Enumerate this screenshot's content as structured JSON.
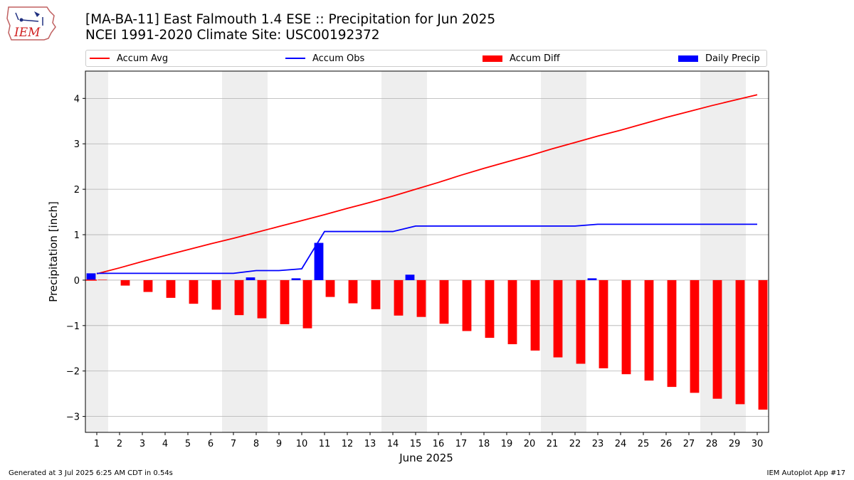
{
  "header": {
    "title_line1": "[MA-BA-11] East Falmouth 1.4 ESE :: Precipitation for Jun 2025",
    "title_line2": "NCEI 1991-2020 Climate Site: USC00192372"
  },
  "logo": {
    "text": "IEM",
    "icon": "iem-logo-icon"
  },
  "footer": {
    "generated": "Generated at 3 Jul 2025 6:25 AM CDT in 0.54s",
    "app": "IEM Autoplot App #17"
  },
  "colors": {
    "avg": "#ff0000",
    "obs": "#0000ff",
    "diff": "#ff0000",
    "precip": "#0000ff",
    "weekend_band": "#eeeeee",
    "grid": "#b0b0b0"
  },
  "chart_data": {
    "type": "bar",
    "xlabel": "June 2025",
    "ylabel": "Precipitation [inch]",
    "xlim": [
      0.5,
      30.5
    ],
    "ylim": [
      -3.35,
      4.6
    ],
    "y_ticks": [
      -3,
      -2,
      -1,
      0,
      1,
      2,
      3,
      4
    ],
    "y_tick_labels": [
      "−3",
      "−2",
      "−1",
      "0",
      "1",
      "2",
      "3",
      "4"
    ],
    "x": [
      1,
      2,
      3,
      4,
      5,
      6,
      7,
      8,
      9,
      10,
      11,
      12,
      13,
      14,
      15,
      16,
      17,
      18,
      19,
      20,
      21,
      22,
      23,
      24,
      25,
      26,
      27,
      28,
      29,
      30
    ],
    "x_tick_labels": [
      "1",
      "2",
      "3",
      "4",
      "5",
      "6",
      "7",
      "8",
      "9",
      "10",
      "11",
      "12",
      "13",
      "14",
      "15",
      "16",
      "17",
      "18",
      "19",
      "20",
      "21",
      "22",
      "23",
      "24",
      "25",
      "26",
      "27",
      "28",
      "29",
      "30"
    ],
    "weekend_days": [
      1,
      7,
      8,
      14,
      15,
      21,
      22,
      28,
      29
    ],
    "grid": "horizontal",
    "legend_position": "top",
    "series": [
      {
        "name": "Accum Avg",
        "kind": "line",
        "values": [
          0.14,
          0.27,
          0.41,
          0.54,
          0.67,
          0.8,
          0.92,
          1.05,
          1.18,
          1.31,
          1.44,
          1.58,
          1.71,
          1.85,
          2.0,
          2.15,
          2.31,
          2.46,
          2.6,
          2.74,
          2.89,
          3.03,
          3.17,
          3.3,
          3.44,
          3.58,
          3.71,
          3.84,
          3.96,
          4.08
        ]
      },
      {
        "name": "Accum Obs",
        "kind": "line",
        "values": [
          0.15,
          0.15,
          0.15,
          0.15,
          0.15,
          0.15,
          0.15,
          0.21,
          0.21,
          0.25,
          1.07,
          1.07,
          1.07,
          1.07,
          1.19,
          1.19,
          1.19,
          1.19,
          1.19,
          1.19,
          1.19,
          1.19,
          1.23,
          1.23,
          1.23,
          1.23,
          1.23,
          1.23,
          1.23,
          1.23
        ]
      },
      {
        "name": "Accum Diff",
        "kind": "bar",
        "values": [
          0.01,
          -0.12,
          -0.26,
          -0.39,
          -0.52,
          -0.65,
          -0.77,
          -0.84,
          -0.97,
          -1.06,
          -0.37,
          -0.51,
          -0.64,
          -0.78,
          -0.81,
          -0.96,
          -1.12,
          -1.27,
          -1.41,
          -1.55,
          -1.7,
          -1.84,
          -1.94,
          -2.07,
          -2.21,
          -2.35,
          -2.48,
          -2.61,
          -2.73,
          -2.85
        ]
      },
      {
        "name": "Daily Precip",
        "kind": "bar",
        "values": [
          0.15,
          0,
          0,
          0,
          0,
          0,
          0,
          0.06,
          0,
          0.04,
          0.82,
          0,
          0,
          0,
          0.12,
          0,
          0,
          0,
          0,
          0,
          0,
          0,
          0.04,
          0,
          0,
          0,
          0,
          0,
          0,
          0
        ]
      }
    ]
  }
}
